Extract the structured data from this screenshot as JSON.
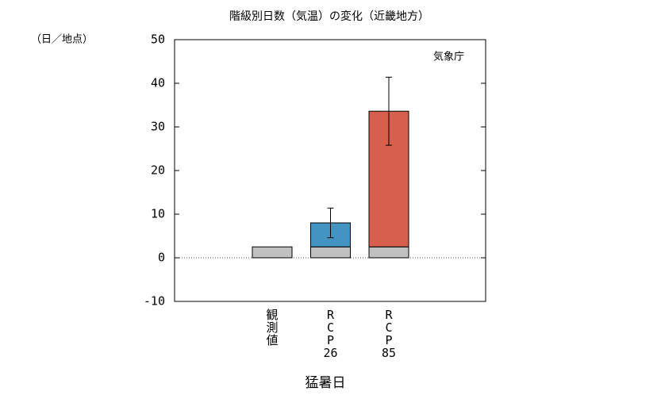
{
  "chart_data": {
    "type": "bar",
    "title": "階級別日数（気温）の変化（近畿地方）",
    "y_unit": "（日／地点）",
    "annotation": "気象庁",
    "xlabel": "猛暑日",
    "categories": [
      "観測値",
      "RCP26",
      "RCP85"
    ],
    "series": [
      {
        "color": "#c0c0c0",
        "values": [
          2.5,
          2.5,
          2.5
        ]
      },
      {
        "colors": [
          null,
          "#4393c3",
          "#d6604d"
        ],
        "values": [
          null,
          5.5,
          31.1
        ],
        "errors": [
          null,
          3.4,
          7.8
        ]
      }
    ],
    "ylim": [
      -10,
      50
    ],
    "yticks": [
      -10,
      0,
      10,
      20,
      30,
      40,
      50
    ],
    "stacked": true
  }
}
